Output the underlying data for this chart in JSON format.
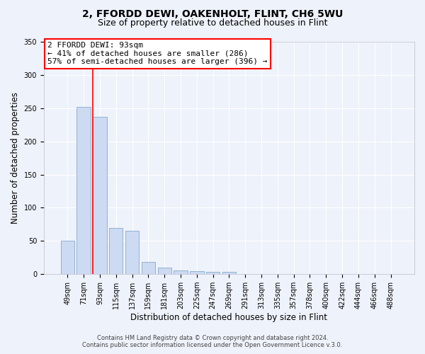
{
  "title": "2, FFORDD DEWI, OAKENHOLT, FLINT, CH6 5WU",
  "subtitle": "Size of property relative to detached houses in Flint",
  "xlabel": "Distribution of detached houses by size in Flint",
  "ylabel": "Number of detached properties",
  "bar_labels": [
    "49sqm",
    "71sqm",
    "93sqm",
    "115sqm",
    "137sqm",
    "159sqm",
    "181sqm",
    "203sqm",
    "225sqm",
    "247sqm",
    "269sqm",
    "291sqm",
    "313sqm",
    "335sqm",
    "357sqm",
    "378sqm",
    "400sqm",
    "422sqm",
    "444sqm",
    "466sqm",
    "488sqm"
  ],
  "bar_values": [
    50,
    252,
    237,
    70,
    65,
    18,
    10,
    6,
    4,
    3,
    3,
    0,
    0,
    0,
    0,
    0,
    0,
    0,
    0,
    0,
    0
  ],
  "bar_color": "#ccdaf2",
  "bar_edge_color": "#88aacc",
  "vline_color": "red",
  "annotation_title": "2 FFORDD DEWI: 93sqm",
  "annotation_line1": "← 41% of detached houses are smaller (286)",
  "annotation_line2": "57% of semi-detached houses are larger (396) →",
  "annotation_box_color": "white",
  "annotation_box_edge": "red",
  "ylim": [
    0,
    350
  ],
  "yticks": [
    0,
    50,
    100,
    150,
    200,
    250,
    300,
    350
  ],
  "footer1": "Contains HM Land Registry data © Crown copyright and database right 2024.",
  "footer2": "Contains public sector information licensed under the Open Government Licence v.3.0.",
  "bg_color": "#eef2fa",
  "plot_bg_color": "#eef2fa",
  "grid_color": "white",
  "title_fontsize": 10,
  "subtitle_fontsize": 9,
  "axis_label_fontsize": 8.5,
  "tick_fontsize": 7,
  "annot_fontsize": 8,
  "footer_fontsize": 6
}
